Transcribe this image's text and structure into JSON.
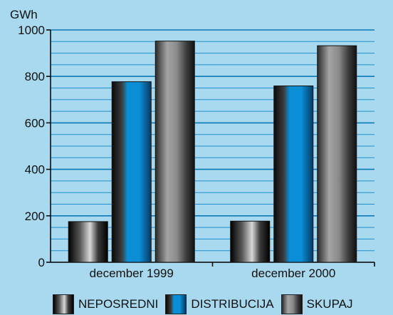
{
  "chart_data": {
    "type": "bar",
    "ylabel": "GWh",
    "ylim": [
      0,
      1000
    ],
    "yticks": [
      0,
      200,
      400,
      600,
      800,
      1000
    ],
    "categories": [
      "december 1999",
      "december 2000"
    ],
    "series": [
      {
        "name": "NEPOSREDNI",
        "values": [
          175,
          177
        ],
        "color": "#000000"
      },
      {
        "name": "DISTRIBUCIJA",
        "values": [
          777,
          759
        ],
        "color": "#0a8fd6"
      },
      {
        "name": "SKUPAJ",
        "values": [
          952,
          932
        ],
        "color": "#8a8a8a"
      }
    ],
    "grid": true,
    "legend": "bottom"
  }
}
